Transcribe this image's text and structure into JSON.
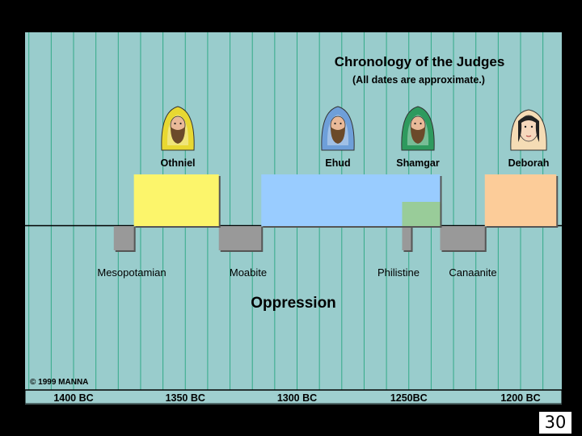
{
  "title": "Chronology of the Judges",
  "subtitle": "(All dates are approximate.)",
  "copyright": "© 1999 MANNA",
  "timeline": {
    "ticks": [
      "1400 BC",
      "1350 BC",
      "1300 BC",
      "1250BC",
      "1200 BC"
    ],
    "tick_years": [
      1400,
      1350,
      1300,
      1250,
      1200
    ]
  },
  "judges": [
    {
      "name": "Othniel",
      "start": 1373,
      "end": 1335,
      "color": "#fcf56b",
      "robe": "#e8d832"
    },
    {
      "name": "Ehud",
      "start": 1316,
      "end": 1236,
      "color": "#99ccff",
      "robe": "#6e9fd9"
    },
    {
      "name": "Shamgar",
      "start": 1253,
      "end": 1236,
      "color": "#99cc99",
      "robe": "#2e9a5e"
    },
    {
      "name": "Deborah",
      "start": 1216,
      "end": 1184,
      "color": "#fccc99",
      "robe": "#f5dcb5"
    }
  ],
  "oppressions": [
    {
      "name": "Mesopotamian",
      "start": 1382,
      "end": 1373
    },
    {
      "name": "Moabite",
      "start": 1335,
      "end": 1316
    },
    {
      "name": "Philistine",
      "start": 1253,
      "end": 1249
    },
    {
      "name": "Canaanite",
      "start": 1236,
      "end": 1216
    }
  ],
  "oppression_label": "Oppression",
  "slide_number": "30",
  "colors": {
    "background": "#99cccc",
    "oppression": "#999999",
    "grid": "#33aa88",
    "axis_bar": "#9fcfcf"
  }
}
